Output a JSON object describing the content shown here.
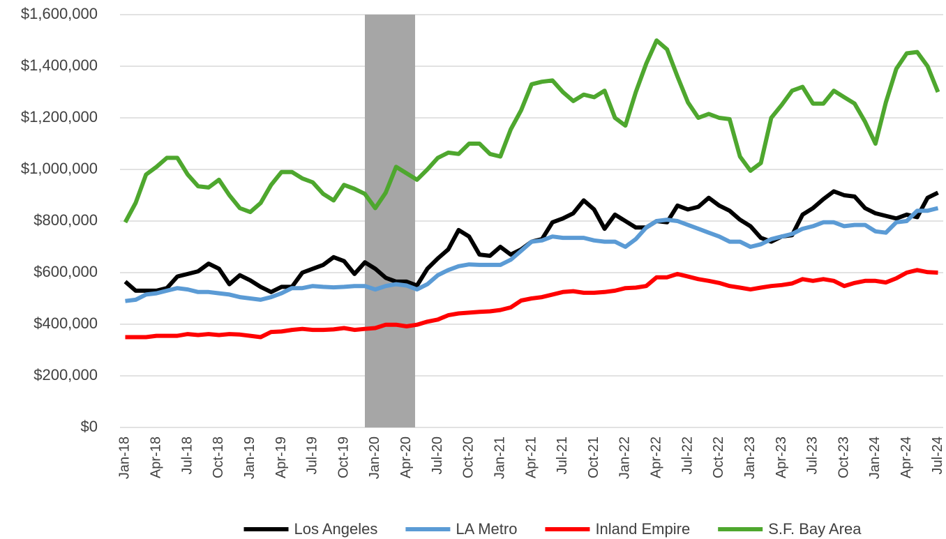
{
  "chart_data": {
    "type": "line",
    "categories": [
      "Jan-18",
      null,
      null,
      "Apr-18",
      null,
      null,
      "Jul-18",
      null,
      null,
      "Oct-18",
      null,
      null,
      "Jan-19",
      null,
      null,
      "Apr-19",
      null,
      null,
      "Jul-19",
      null,
      null,
      "Oct-19",
      null,
      null,
      "Jan-20",
      null,
      null,
      "Apr-20",
      null,
      null,
      "Jul-20",
      null,
      null,
      "Oct-20",
      null,
      null,
      "Jan-21",
      null,
      null,
      "Apr-21",
      null,
      null,
      "Jul-21",
      null,
      null,
      "Oct-21",
      null,
      null,
      "Jan-22",
      null,
      null,
      "Apr-22",
      null,
      null,
      "Jul-22",
      null,
      null,
      "Oct-22",
      null,
      null,
      "Jan-23",
      null,
      null,
      "Apr-23",
      null,
      null,
      "Jul-23",
      null,
      null,
      "Oct-23",
      null,
      null,
      "Jan-24",
      null,
      null,
      "Apr-24",
      null,
      null,
      "Jul-24"
    ],
    "series": [
      {
        "name": "Los Angeles",
        "color": "#000000",
        "values": [
          565000,
          530000,
          530000,
          530000,
          540000,
          585000,
          595000,
          605000,
          635000,
          615000,
          555000,
          590000,
          570000,
          545000,
          525000,
          545000,
          545000,
          600000,
          615000,
          630000,
          660000,
          645000,
          595000,
          640000,
          615000,
          580000,
          565000,
          565000,
          550000,
          615000,
          655000,
          690000,
          765000,
          740000,
          670000,
          665000,
          700000,
          670000,
          690000,
          720000,
          730000,
          795000,
          810000,
          830000,
          880000,
          845000,
          770000,
          825000,
          800000,
          775000,
          775000,
          800000,
          795000,
          860000,
          845000,
          855000,
          890000,
          860000,
          840000,
          805000,
          780000,
          735000,
          720000,
          740000,
          745000,
          825000,
          850000,
          885000,
          915000,
          900000,
          895000,
          850000,
          830000,
          820000,
          810000,
          825000,
          815000,
          890000,
          910000
        ]
      },
      {
        "name": "LA Metro",
        "color": "#5b9bd5",
        "values": [
          490000,
          495000,
          515000,
          520000,
          530000,
          540000,
          535000,
          525000,
          525000,
          520000,
          515000,
          505000,
          500000,
          495000,
          505000,
          520000,
          540000,
          540000,
          548000,
          545000,
          543000,
          545000,
          548000,
          548000,
          535000,
          548000,
          555000,
          550000,
          535000,
          555000,
          590000,
          610000,
          625000,
          632000,
          630000,
          630000,
          630000,
          650000,
          685000,
          720000,
          725000,
          740000,
          735000,
          735000,
          735000,
          725000,
          720000,
          720000,
          700000,
          730000,
          775000,
          800000,
          805000,
          800000,
          785000,
          770000,
          755000,
          740000,
          720000,
          720000,
          700000,
          710000,
          730000,
          740000,
          750000,
          770000,
          780000,
          795000,
          795000,
          780000,
          785000,
          785000,
          760000,
          755000,
          795000,
          800000,
          840000,
          840000,
          850000
        ]
      },
      {
        "name": "Inland Empire",
        "color": "#ff0000",
        "values": [
          350000,
          350000,
          350000,
          355000,
          355000,
          355000,
          362000,
          358000,
          362000,
          358000,
          362000,
          360000,
          355000,
          350000,
          370000,
          372000,
          378000,
          382000,
          378000,
          378000,
          380000,
          385000,
          378000,
          382000,
          385000,
          398000,
          398000,
          392000,
          398000,
          410000,
          418000,
          435000,
          442000,
          445000,
          448000,
          450000,
          455000,
          465000,
          492000,
          500000,
          505000,
          515000,
          525000,
          528000,
          522000,
          522000,
          525000,
          530000,
          540000,
          542000,
          548000,
          582000,
          582000,
          595000,
          585000,
          575000,
          568000,
          560000,
          548000,
          542000,
          535000,
          542000,
          548000,
          552000,
          558000,
          575000,
          568000,
          575000,
          568000,
          548000,
          560000,
          568000,
          568000,
          562000,
          578000,
          600000,
          610000,
          602000,
          600000
        ]
      },
      {
        "name": "S.F. Bay Area",
        "color": "#4ea72e",
        "values": [
          795000,
          870000,
          980000,
          1010000,
          1045000,
          1045000,
          980000,
          935000,
          930000,
          960000,
          900000,
          850000,
          835000,
          870000,
          940000,
          990000,
          990000,
          965000,
          950000,
          905000,
          880000,
          940000,
          925000,
          905000,
          850000,
          910000,
          1010000,
          985000,
          960000,
          1000000,
          1045000,
          1065000,
          1060000,
          1100000,
          1100000,
          1060000,
          1050000,
          1155000,
          1230000,
          1330000,
          1340000,
          1345000,
          1300000,
          1265000,
          1290000,
          1280000,
          1305000,
          1200000,
          1170000,
          1300000,
          1410000,
          1500000,
          1465000,
          1360000,
          1260000,
          1200000,
          1215000,
          1200000,
          1195000,
          1050000,
          995000,
          1025000,
          1200000,
          1250000,
          1305000,
          1320000,
          1255000,
          1255000,
          1305000,
          1280000,
          1255000,
          1185000,
          1100000,
          1260000,
          1390000,
          1450000,
          1455000,
          1400000,
          1300000
        ]
      }
    ],
    "ylim": [
      0,
      1600000
    ],
    "yticks": [
      {
        "value": 0,
        "label": "$0"
      },
      {
        "value": 200000,
        "label": "$200,000"
      },
      {
        "value": 400000,
        "label": "$400,000"
      },
      {
        "value": 600000,
        "label": "$600,000"
      },
      {
        "value": 800000,
        "label": "$800,000"
      },
      {
        "value": 1000000,
        "label": "$1,000,000"
      },
      {
        "value": 1200000,
        "label": "$1,200,000"
      },
      {
        "value": 1400000,
        "label": "$1,400,000"
      },
      {
        "value": 1600000,
        "label": "$1,600,000"
      }
    ],
    "grid": true,
    "legend": "bottom"
  }
}
